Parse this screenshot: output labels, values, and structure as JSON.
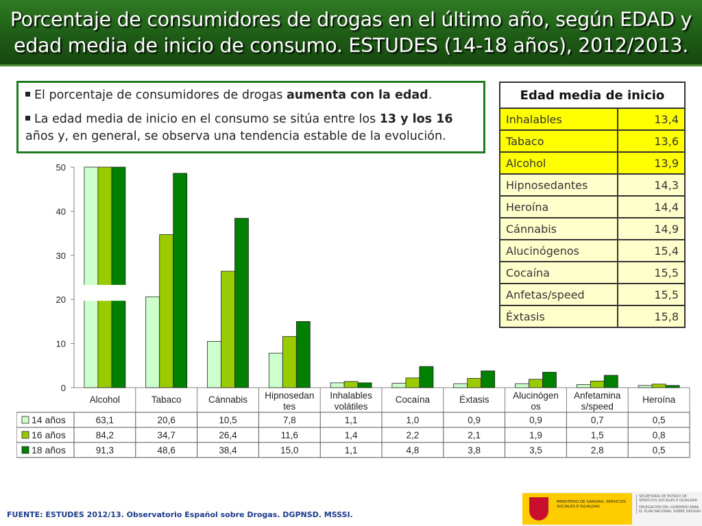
{
  "title": "Porcentaje de consumidores de drogas en el último año, según EDAD y edad media de inicio de consumo. ESTUDES (14-18 años), 2012/2013.",
  "summary": [
    {
      "pre": "El porcentaje de consumidores de drogas ",
      "bold": "aumenta con la edad",
      "post": "."
    },
    {
      "pre": "La edad media de inicio en el consumo se sitúa entre los ",
      "bold": "13 y los 16",
      "post": " años y, en general, se observa una tendencia estable de la evolución."
    }
  ],
  "onset_table": {
    "header": "Edad media de inicio",
    "rows": [
      {
        "label": "Inhalables",
        "value": "13,4",
        "highlight": true
      },
      {
        "label": "Tabaco",
        "value": "13,6",
        "highlight": true
      },
      {
        "label": "Alcohol",
        "value": "13,9",
        "highlight": true
      },
      {
        "label": "Hipnosedantes",
        "value": "14,3",
        "highlight": false
      },
      {
        "label": "Heroína",
        "value": "14,4",
        "highlight": false
      },
      {
        "label": "Cánnabis",
        "value": "14,9",
        "highlight": false
      },
      {
        "label": "Alucinógenos",
        "value": "15,4",
        "highlight": false
      },
      {
        "label": "Cocaína",
        "value": "15,5",
        "highlight": false
      },
      {
        "label": "Anfetas/speed",
        "value": "15,5",
        "highlight": false
      },
      {
        "label": "Éxtasis",
        "value": "15,8",
        "highlight": false
      }
    ],
    "colors": {
      "highlight": "#ffff00",
      "normal": "#ffffcc"
    }
  },
  "chart_data": {
    "type": "bar",
    "categories": [
      "Alcohol",
      "Tabaco",
      "Cánnabis",
      "Hipnosedan\ntes",
      "Inhalables\nvolátiles",
      "Cocaína",
      "Éxtasis",
      "Alucinógen\nos",
      "Anfetamina\ns/speed",
      "Heroína"
    ],
    "series": [
      {
        "name": "14 años",
        "values": [
          63.1,
          20.6,
          10.5,
          7.8,
          1.1,
          1.0,
          0.9,
          0.9,
          0.7,
          0.5
        ],
        "labels": [
          "63,1",
          "20,6",
          "10,5",
          "7,8",
          "1,1",
          "1,0",
          "0,9",
          "0,9",
          "0,7",
          "0,5"
        ],
        "color": "#ccffcc"
      },
      {
        "name": "16 años",
        "values": [
          84.2,
          34.7,
          26.4,
          11.6,
          1.4,
          2.2,
          2.1,
          1.9,
          1.5,
          0.8
        ],
        "labels": [
          "84,2",
          "34,7",
          "26,4",
          "11,6",
          "1,4",
          "2,2",
          "2,1",
          "1,9",
          "1,5",
          "0,8"
        ],
        "color": "#99cc00"
      },
      {
        "name": "18 años",
        "values": [
          91.3,
          48.6,
          38.4,
          15.0,
          1.1,
          4.8,
          3.8,
          3.5,
          2.8,
          0.5
        ],
        "labels": [
          "91,3",
          "48,6",
          "38,4",
          "15,0",
          "1,1",
          "4,8",
          "3,8",
          "3,5",
          "2,8",
          "0,5"
        ],
        "color": "#008000"
      }
    ],
    "y_ticks": [
      "0",
      "10",
      "20",
      "30",
      "40",
      "50"
    ],
    "ylim": [
      0,
      50
    ],
    "axis_break": true,
    "legend": "data-table",
    "xlabel": "",
    "ylabel": ""
  },
  "footer": {
    "source": "FUENTE: ESTUDES 2012/13. Observatorio Español sobre Drogas. DGPNSD. MSSSI.",
    "logo_text": "MINISTERIO DE SANIDAD, SERVICIOS SOCIALES E IGUALDAD",
    "logo_right_text": "SECRETARÍA DE ESTADO DE SERVICIOS SOCIALES E IGUALDAD",
    "logo_right_sub": "DELEGACIÓN DEL GOBIERNO PARA EL PLAN NACIONAL SOBRE DROGAS"
  }
}
